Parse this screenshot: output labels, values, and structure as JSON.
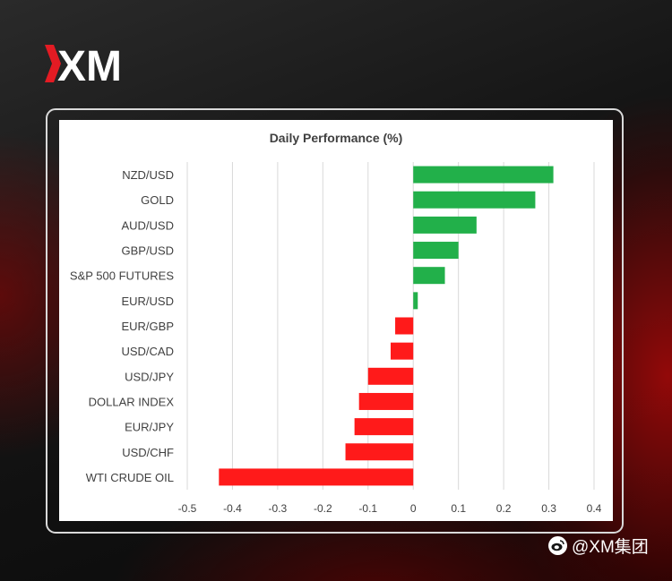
{
  "brand": {
    "logo_text": "XM",
    "accent": "#e31b23"
  },
  "watermark": {
    "icon": "weibo-icon",
    "text": "@XM集团"
  },
  "colors": {
    "positive": "#22b04a",
    "negative": "#ff1a1a",
    "grid": "#d9d9d9",
    "label": "#404040"
  },
  "chart_data": {
    "type": "bar",
    "orientation": "horizontal",
    "title": "Daily Performance (%)",
    "categories": [
      "NZD/USD",
      "GOLD",
      "AUD/USD",
      "GBP/USD",
      "S&P 500 FUTURES",
      "EUR/USD",
      "EUR/GBP",
      "USD/CAD",
      "USD/JPY",
      "DOLLAR INDEX",
      "EUR/JPY",
      "USD/CHF",
      "WTI CRUDE OIL"
    ],
    "values": [
      0.31,
      0.27,
      0.14,
      0.1,
      0.07,
      0.01,
      -0.04,
      -0.05,
      -0.1,
      -0.12,
      -0.13,
      -0.15,
      -0.43
    ],
    "xlim": [
      -0.5,
      0.4
    ],
    "xticks": [
      -0.5,
      -0.4,
      -0.3,
      -0.2,
      -0.1,
      0,
      0.1,
      0.2,
      0.3,
      0.4
    ],
    "grid": true,
    "legend": "none"
  }
}
